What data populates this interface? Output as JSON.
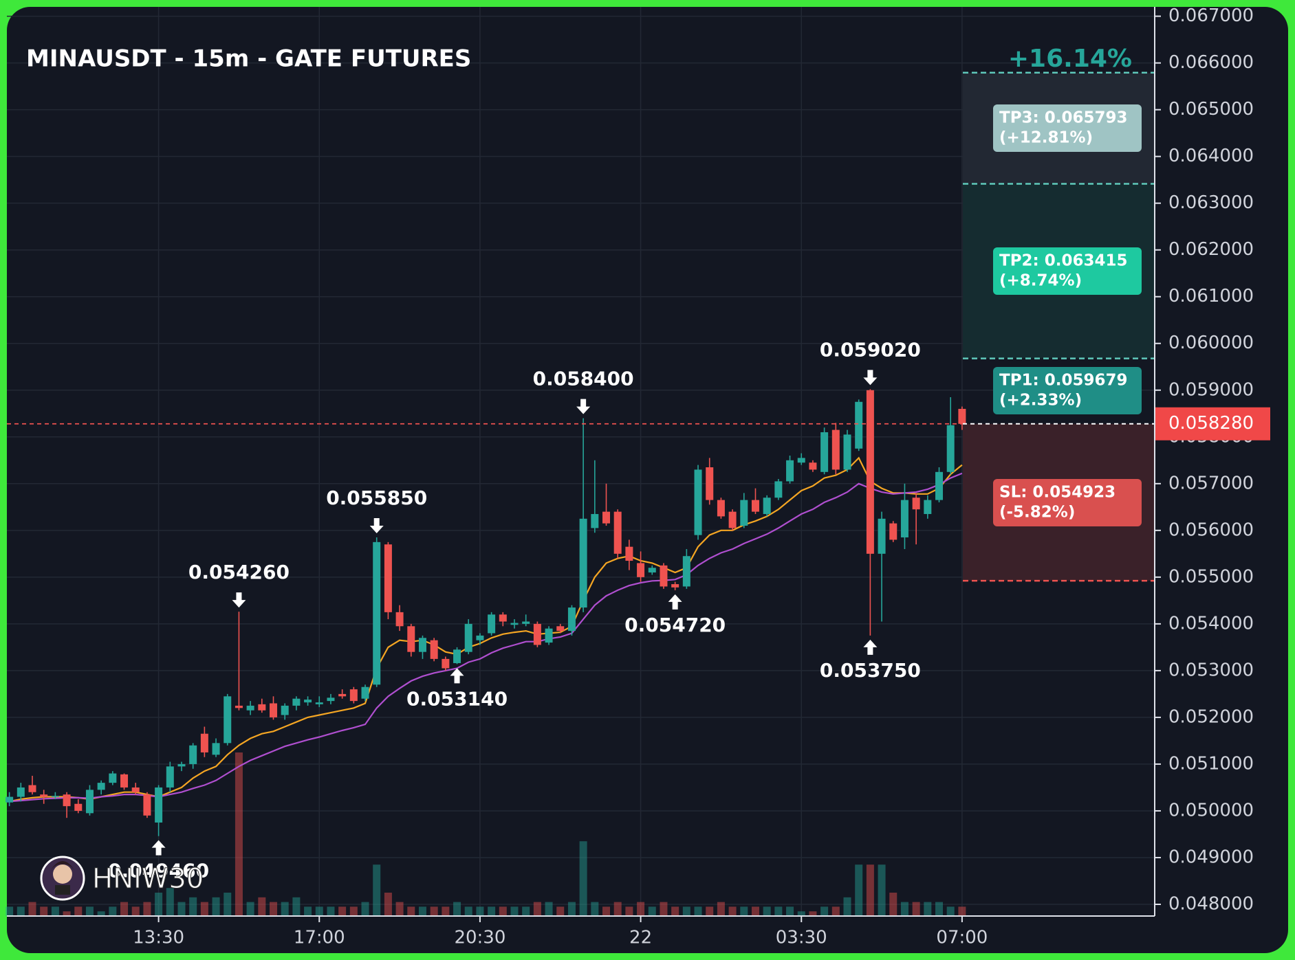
{
  "chart_data": {
    "type": "candlestick",
    "title": "MINAUSDT - 15m - GATE FUTURES",
    "target_change": "+16.14%",
    "watermark": "HNIW30",
    "up_color": "#26a69a",
    "down_color": "#ef5350",
    "categories": [
      null,
      null,
      null,
      null,
      null,
      null,
      null,
      null,
      null,
      null,
      null,
      null,
      null,
      "13:30",
      null,
      null,
      null,
      null,
      null,
      null,
      null,
      null,
      null,
      null,
      null,
      null,
      null,
      "17:00",
      null,
      null,
      null,
      null,
      null,
      null,
      null,
      null,
      null,
      null,
      null,
      null,
      null,
      "20:30",
      null,
      null,
      null,
      null,
      null,
      null,
      null,
      null,
      null,
      null,
      null,
      null,
      null,
      "22",
      null,
      null,
      null,
      null,
      null,
      null,
      null,
      null,
      null,
      null,
      null,
      null,
      null,
      "03:30",
      null,
      null,
      null,
      null,
      null,
      null,
      null,
      null,
      null,
      null,
      null,
      null,
      null,
      "07:00"
    ],
    "open": [
      0.05018,
      0.0503,
      0.05055,
      0.05035,
      0.0503,
      0.05035,
      0.05015,
      0.04995,
      0.05045,
      0.0506,
      0.05078,
      0.0505,
      0.05035,
      0.04975,
      0.0505,
      0.05095,
      0.051,
      0.05165,
      0.0512,
      0.05145,
      0.05225,
      0.05215,
      0.05228,
      0.0523,
      0.05205,
      0.05225,
      0.05232,
      0.05228,
      0.05235,
      0.0525,
      0.0526,
      0.0524,
      0.0527,
      0.0557,
      0.05425,
      0.05395,
      0.0534,
      0.05365,
      0.05325,
      0.05316,
      0.0534,
      0.05365,
      0.0538,
      0.0542,
      0.05398,
      0.054,
      0.054,
      0.0536,
      0.05395,
      0.05385,
      0.05435,
      0.05605,
      0.0564,
      0.0564,
      0.05565,
      0.0553,
      0.0551,
      0.05525,
      0.05485,
      0.0548,
      0.0559,
      0.05735,
      0.05665,
      0.0564,
      0.0561,
      0.05665,
      0.05635,
      0.0567,
      0.05705,
      0.05745,
      0.05745,
      0.05725,
      0.05815,
      0.0573,
      0.05775,
      0.059,
      0.0555,
      0.05615,
      0.05585,
      0.0567,
      0.05635,
      0.05665,
      0.05725,
      0.0586
    ],
    "high": [
      0.0504,
      0.0506,
      0.05075,
      0.05045,
      0.0504,
      0.0504,
      0.05025,
      0.05055,
      0.05065,
      0.05085,
      0.0508,
      0.0506,
      0.0504,
      0.05055,
      0.05105,
      0.05105,
      0.05145,
      0.0518,
      0.05155,
      0.0525,
      0.05426,
      0.05235,
      0.0524,
      0.05245,
      0.0523,
      0.05245,
      0.05245,
      0.05245,
      0.0525,
      0.0526,
      0.05265,
      0.0527,
      0.05585,
      0.05575,
      0.0544,
      0.054,
      0.05375,
      0.0537,
      0.0533,
      0.0535,
      0.0541,
      0.0538,
      0.05425,
      0.05425,
      0.0541,
      0.0542,
      0.05405,
      0.05395,
      0.054,
      0.0544,
      0.0584,
      0.0575,
      0.057,
      0.05645,
      0.0558,
      0.05555,
      0.05525,
      0.0553,
      0.0549,
      0.0556,
      0.0574,
      0.05755,
      0.0567,
      0.05645,
      0.0568,
      0.0569,
      0.05675,
      0.0571,
      0.0576,
      0.05765,
      0.0575,
      0.0582,
      0.0583,
      0.05815,
      0.0588,
      0.05902,
      0.0564,
      0.0562,
      0.057,
      0.0568,
      0.05675,
      0.05735,
      0.05885,
      0.05865
    ],
    "low": [
      0.0501,
      0.0502,
      0.05035,
      0.05015,
      0.05025,
      0.04985,
      0.04995,
      0.0499,
      0.05035,
      0.05055,
      0.05045,
      0.05035,
      0.04985,
      0.04946,
      0.0504,
      0.05085,
      0.0509,
      0.05115,
      0.05115,
      0.0514,
      0.05215,
      0.05205,
      0.0521,
      0.05195,
      0.05195,
      0.05215,
      0.05225,
      0.05222,
      0.05228,
      0.0524,
      0.0523,
      0.05235,
      0.05265,
      0.0541,
      0.05385,
      0.0533,
      0.05325,
      0.0532,
      0.053,
      0.05314,
      0.05335,
      0.05355,
      0.05375,
      0.05395,
      0.0539,
      0.05395,
      0.0535,
      0.05355,
      0.0538,
      0.05375,
      0.05425,
      0.05595,
      0.0561,
      0.0554,
      0.05515,
      0.0549,
      0.05505,
      0.05475,
      0.05472,
      0.05475,
      0.0558,
      0.05655,
      0.05625,
      0.056,
      0.05605,
      0.05635,
      0.0563,
      0.05665,
      0.057,
      0.0574,
      0.05725,
      0.0572,
      0.0572,
      0.05725,
      0.0577,
      0.05375,
      0.05405,
      0.05575,
      0.0556,
      0.0557,
      0.05625,
      0.0566,
      0.0572,
      0.05815
    ],
    "close": [
      0.0503,
      0.0505,
      0.0504,
      0.0503,
      0.05032,
      0.0501,
      0.05,
      0.05045,
      0.0506,
      0.0508,
      0.0505,
      0.0504,
      0.0499,
      0.0505,
      0.05095,
      0.051,
      0.0514,
      0.05125,
      0.05145,
      0.05245,
      0.0522,
      0.05225,
      0.05215,
      0.052,
      0.05225,
      0.0524,
      0.05238,
      0.05232,
      0.05242,
      0.05245,
      0.05235,
      0.05265,
      0.05575,
      0.05425,
      0.05395,
      0.0534,
      0.0537,
      0.05325,
      0.05305,
      0.05345,
      0.054,
      0.05375,
      0.0542,
      0.05405,
      0.05402,
      0.05405,
      0.05355,
      0.0539,
      0.05385,
      0.05435,
      0.05625,
      0.05635,
      0.05615,
      0.0555,
      0.05535,
      0.055,
      0.0552,
      0.0548,
      0.05478,
      0.05545,
      0.0573,
      0.05665,
      0.0563,
      0.05605,
      0.05665,
      0.0564,
      0.0567,
      0.05705,
      0.0575,
      0.05755,
      0.0573,
      0.0581,
      0.0573,
      0.05805,
      0.05875,
      0.0555,
      0.05625,
      0.0558,
      0.05665,
      0.05645,
      0.05665,
      0.05725,
      0.05825,
      0.05828
    ],
    "volume": [
      2,
      2,
      3,
      2,
      2,
      1,
      2,
      2,
      1,
      2,
      3,
      2,
      3,
      5,
      6,
      3,
      4,
      3,
      4,
      5,
      35,
      3,
      4,
      3,
      3,
      4,
      2,
      2,
      2,
      2,
      2,
      3,
      11,
      5,
      3,
      2,
      2,
      2,
      2,
      3,
      2,
      2,
      2,
      2,
      2,
      2,
      3,
      3,
      2,
      3,
      16,
      3,
      2,
      3,
      2,
      3,
      2,
      3,
      2,
      2,
      2,
      2,
      3,
      2,
      2,
      2,
      2,
      2,
      2,
      1,
      1,
      2,
      2,
      4,
      11,
      11,
      11,
      5,
      3,
      3,
      3,
      3,
      2,
      2
    ],
    "lines": [
      {
        "color": "#f5a623",
        "values": [
          0.0502,
          0.05025,
          0.05028,
          0.0503,
          0.0503,
          0.0503,
          0.05028,
          0.05025,
          0.0503,
          0.05035,
          0.0504,
          0.0504,
          0.05035,
          0.0503,
          0.0504,
          0.0505,
          0.0507,
          0.05085,
          0.05095,
          0.0512,
          0.0514,
          0.05155,
          0.05165,
          0.0517,
          0.0518,
          0.0519,
          0.052,
          0.05205,
          0.0521,
          0.05215,
          0.0522,
          0.0523,
          0.05305,
          0.0535,
          0.05365,
          0.05362,
          0.05365,
          0.05355,
          0.0534,
          0.05335,
          0.0535,
          0.05358,
          0.0537,
          0.05378,
          0.05382,
          0.05385,
          0.05378,
          0.0538,
          0.05382,
          0.05395,
          0.0545,
          0.055,
          0.0553,
          0.0554,
          0.05545,
          0.05535,
          0.0553,
          0.0552,
          0.0551,
          0.0552,
          0.05565,
          0.0559,
          0.056,
          0.056,
          0.05612,
          0.0562,
          0.0563,
          0.05645,
          0.05665,
          0.05685,
          0.05695,
          0.05712,
          0.05718,
          0.0573,
          0.05755,
          0.05705,
          0.0569,
          0.0568,
          0.0568,
          0.05678,
          0.05678,
          0.0569,
          0.0572,
          0.0574
        ]
      },
      {
        "color": "#b04fd0",
        "values": [
          0.0502,
          0.05022,
          0.05024,
          0.05026,
          0.05027,
          0.05028,
          0.05028,
          0.05027,
          0.0503,
          0.05032,
          0.05035,
          0.05035,
          0.05033,
          0.0503,
          0.05035,
          0.0504,
          0.05048,
          0.05055,
          0.05065,
          0.0508,
          0.05095,
          0.05108,
          0.05118,
          0.05128,
          0.05138,
          0.05145,
          0.05152,
          0.05158,
          0.05165,
          0.05172,
          0.05178,
          0.05185,
          0.0522,
          0.05245,
          0.05262,
          0.05278,
          0.05288,
          0.05295,
          0.053,
          0.05305,
          0.05318,
          0.05325,
          0.05338,
          0.05348,
          0.05355,
          0.05362,
          0.05362,
          0.05368,
          0.05372,
          0.0538,
          0.0541,
          0.0544,
          0.0546,
          0.05472,
          0.05482,
          0.05488,
          0.05492,
          0.05493,
          0.05495,
          0.05505,
          0.05525,
          0.0554,
          0.05552,
          0.0556,
          0.05572,
          0.05582,
          0.05592,
          0.05605,
          0.0562,
          0.05635,
          0.05645,
          0.0566,
          0.0567,
          0.05682,
          0.057,
          0.0569,
          0.05682,
          0.05678,
          0.0568,
          0.05682,
          0.05688,
          0.05698,
          0.05712,
          0.05722
        ]
      }
    ],
    "annotations": [
      {
        "text": "0.049460",
        "index": 13,
        "side": "low"
      },
      {
        "text": "0.054260",
        "index": 20,
        "side": "high"
      },
      {
        "text": "0.055850",
        "index": 32,
        "side": "high"
      },
      {
        "text": "0.053140",
        "index": 39,
        "side": "low"
      },
      {
        "text": "0.058400",
        "index": 50,
        "side": "high"
      },
      {
        "text": "0.054720",
        "index": 58,
        "side": "low"
      },
      {
        "text": "0.059020",
        "index": 75,
        "side": "high"
      },
      {
        "text": "0.053750",
        "index": 75,
        "side": "low"
      }
    ],
    "levels": [
      {
        "label": "TP3: 0.065793",
        "change": "(+12.81%)",
        "price": 0.065793,
        "color": "#9fc4c4"
      },
      {
        "label": "TP2: 0.063415",
        "change": "(+8.74%)",
        "price": 0.063415,
        "color": "#1ec9a0"
      },
      {
        "label": "TP1: 0.059679",
        "change": "(+2.33%)",
        "price": 0.059679,
        "color": "#1f8e86"
      },
      {
        "label": "SL: 0.054923",
        "change": "(-5.82%)",
        "price": 0.054923,
        "color": "#d9504f"
      }
    ],
    "current_price": {
      "value": 0.05828,
      "label": "0.058280"
    },
    "ylim": [
      0.04775,
      0.0672
    ],
    "yticks": [
      {
        "value": 0.048,
        "label": "0.048000"
      },
      {
        "value": 0.049,
        "label": "0.049000"
      },
      {
        "value": 0.05,
        "label": "0.050000"
      },
      {
        "value": 0.051,
        "label": "0.051000"
      },
      {
        "value": 0.052,
        "label": "0.052000"
      },
      {
        "value": 0.053,
        "label": "0.053000"
      },
      {
        "value": 0.054,
        "label": "0.054000"
      },
      {
        "value": 0.055,
        "label": "0.055000"
      },
      {
        "value": 0.056,
        "label": "0.056000"
      },
      {
        "value": 0.057,
        "label": "0.057000"
      },
      {
        "value": 0.058,
        "label": "0.058000"
      },
      {
        "value": 0.059,
        "label": "0.059000"
      },
      {
        "value": 0.06,
        "label": "0.060000"
      },
      {
        "value": 0.061,
        "label": "0.061000"
      },
      {
        "value": 0.062,
        "label": "0.062000"
      },
      {
        "value": 0.063,
        "label": "0.063000"
      },
      {
        "value": 0.064,
        "label": "0.064000"
      },
      {
        "value": 0.065,
        "label": "0.065000"
      },
      {
        "value": 0.066,
        "label": "0.066000"
      },
      {
        "value": 0.067,
        "label": "0.067000"
      }
    ],
    "grid": true
  }
}
